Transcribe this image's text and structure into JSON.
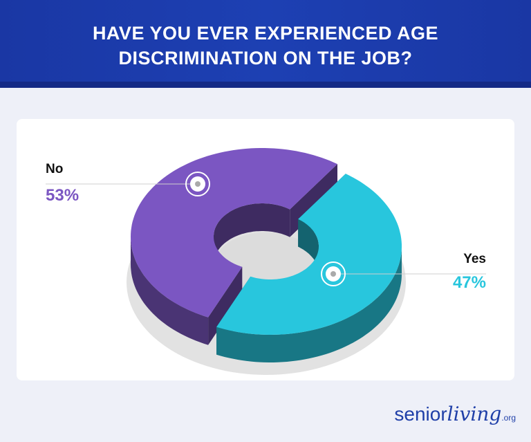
{
  "chart_data": {
    "type": "donut3d",
    "title": "HAVE YOU EVER EXPERIENCED AGE DISCRIMINATION ON THE JOB?",
    "categories": [
      "No",
      "Yes"
    ],
    "values": [
      53,
      47
    ],
    "value_labels": [
      "53%",
      "47%"
    ],
    "colors": [
      "#7b56c2",
      "#28c6dd"
    ]
  },
  "brand": {
    "parts": [
      "senior",
      "living",
      ".org"
    ]
  }
}
